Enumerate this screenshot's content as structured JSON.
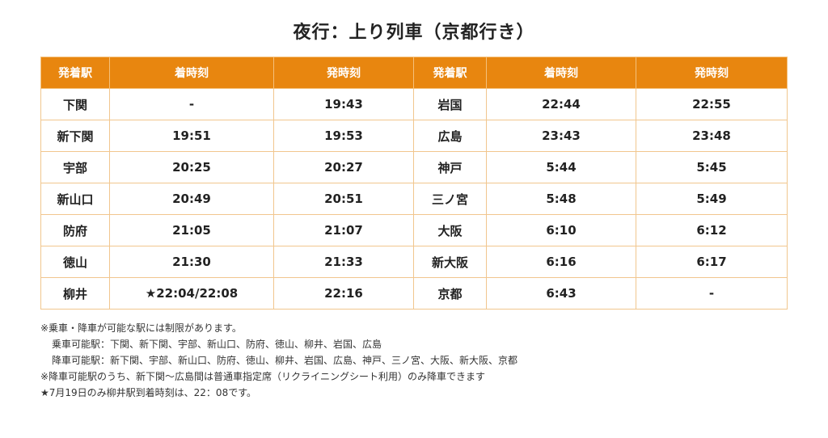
{
  "title": "夜行：上り列車（京都行き）",
  "headers": [
    "発着駅",
    "着時刻",
    "発時刻",
    "発着駅",
    "着時刻",
    "発時刻"
  ],
  "rows": [
    [
      "下関",
      "-",
      "19:43",
      "岩国",
      "22:44",
      "22:55"
    ],
    [
      "新下関",
      "19:51",
      "19:53",
      "広島",
      "23:43",
      "23:48"
    ],
    [
      "宇部",
      "20:25",
      "20:27",
      "神戸",
      "5:44",
      "5:45"
    ],
    [
      "新山口",
      "20:49",
      "20:51",
      "三ノ宮",
      "5:48",
      "5:49"
    ],
    [
      "防府",
      "21:05",
      "21:07",
      "大阪",
      "6:10",
      "6:12"
    ],
    [
      "徳山",
      "21:30",
      "21:33",
      "新大阪",
      "6:16",
      "6:17"
    ],
    [
      "柳井",
      "★22:04/22:08",
      "22:16",
      "京都",
      "6:43",
      "-"
    ]
  ],
  "notes": [
    "※乗車・降車が可能な駅には制限があります。",
    "乗車可能駅：下関、新下関、宇部、新山口、防府、徳山、柳井、岩国、広島",
    "降車可能駅：新下関、宇部、新山口、防府、徳山、柳井、岩国、広島、神戸、三ノ宮、大阪、新大阪、京都",
    "※降車可能駅のうち、新下関～広島間は普通車指定席（リクライニングシート利用）のみ降車できます",
    "★7月19日のみ柳井駅到着時刻は、22：08です。"
  ],
  "colors": {
    "header_bg": "#e8860f",
    "border": "#f1c68e"
  }
}
